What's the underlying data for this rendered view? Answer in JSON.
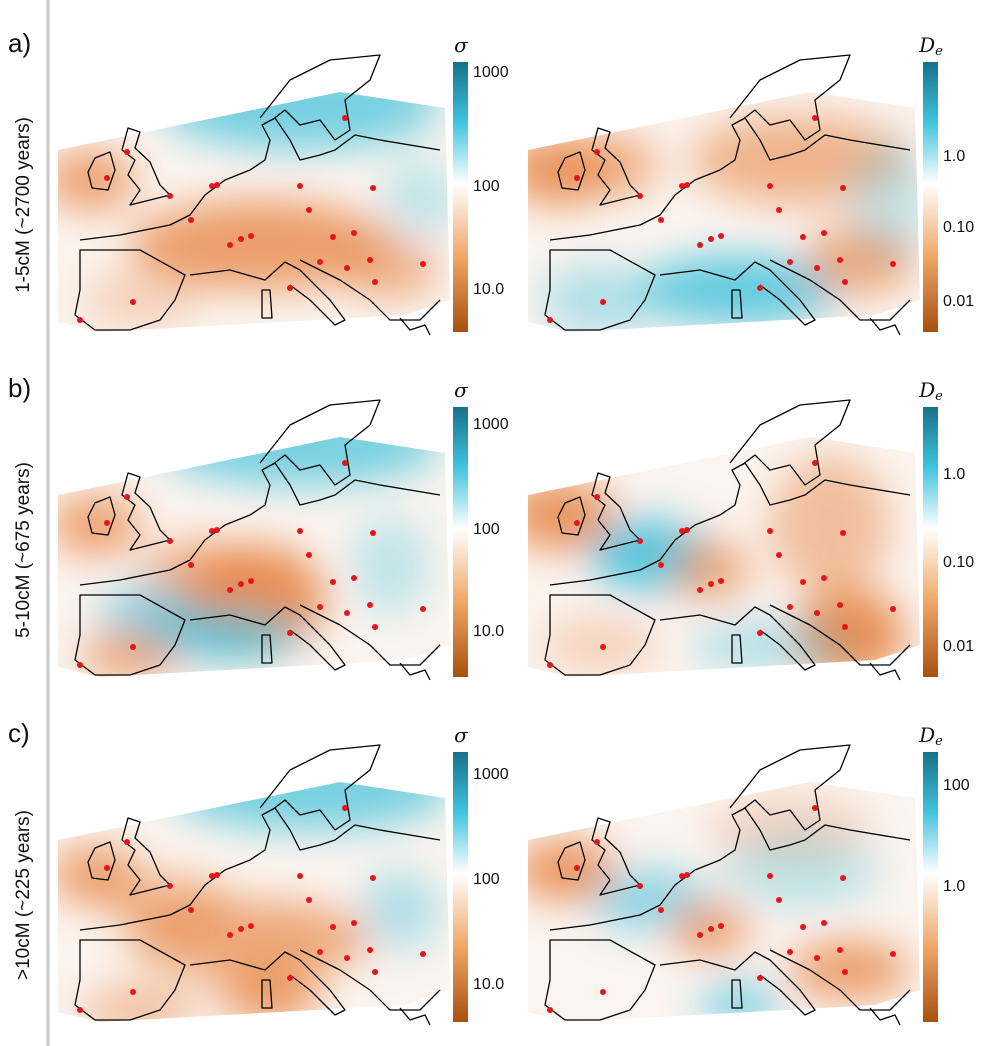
{
  "rows": [
    {
      "letter": "a)",
      "label": "1-5cM (~2700 years)",
      "left_colorbar": {
        "title": "σ",
        "ticks": [
          "1000",
          "100",
          "10.0"
        ]
      },
      "right_colorbar": {
        "title": "D",
        "title_subscript": "e",
        "ticks": [
          "1.0",
          "0.10",
          "0.01"
        ]
      }
    },
    {
      "letter": "b)",
      "label": "5-10cM (~675 years)",
      "left_colorbar": {
        "title": "σ",
        "ticks": [
          "1000",
          "100",
          "10.0"
        ]
      },
      "right_colorbar": {
        "title": "D",
        "title_subscript": "e",
        "ticks": [
          "1.0",
          "0.10",
          "0.01"
        ]
      }
    },
    {
      "letter": "c)",
      "label": ">10cM (~225 years)",
      "left_colorbar": {
        "title": "σ",
        "ticks": [
          "1000",
          "100",
          "10.0"
        ]
      },
      "right_colorbar": {
        "title": "D",
        "title_subscript": "e",
        "ticks": [
          "100",
          "1.0"
        ]
      }
    }
  ]
}
